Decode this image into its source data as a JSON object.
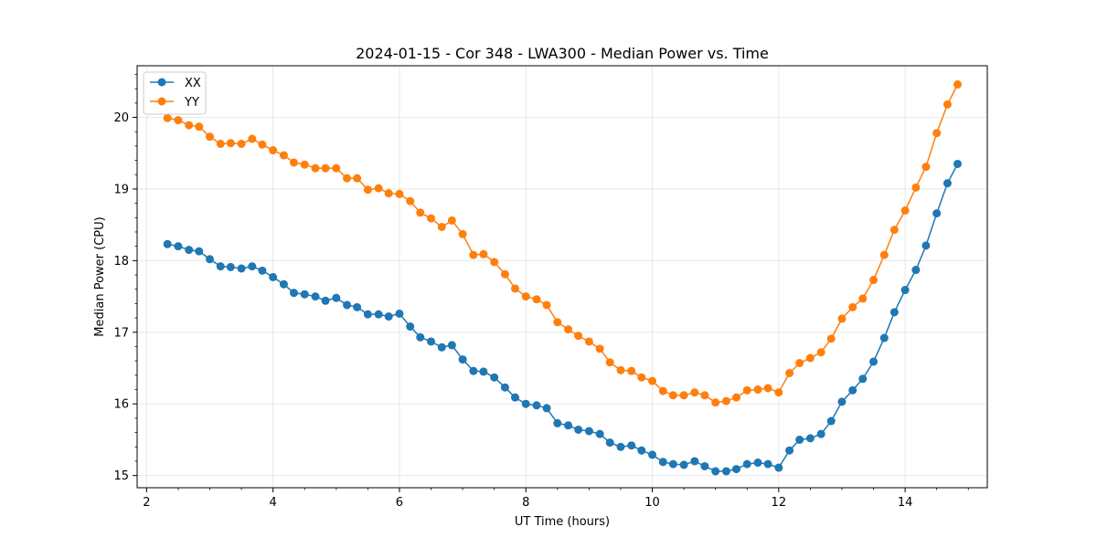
{
  "chart_data": {
    "type": "line",
    "title": "2024-01-15 - Cor 348 - LWA300 - Median Power vs. Time",
    "xlabel": "UT Time (hours)",
    "ylabel": "Median Power (CPU)",
    "xlim": [
      1.85,
      15.3
    ],
    "ylim": [
      14.83,
      20.72
    ],
    "xticks": [
      2,
      4,
      6,
      8,
      10,
      12,
      14
    ],
    "yticks": [
      15,
      16,
      17,
      18,
      19,
      20
    ],
    "grid": true,
    "legend_position": "top-left",
    "series": [
      {
        "name": "XX",
        "color": "#1f77b4",
        "x": [
          2.33,
          2.5,
          2.67,
          2.83,
          3.0,
          3.17,
          3.33,
          3.5,
          3.67,
          3.83,
          4.0,
          4.17,
          4.33,
          4.5,
          4.67,
          4.83,
          5.0,
          5.17,
          5.33,
          5.5,
          5.67,
          5.83,
          6.0,
          6.17,
          6.33,
          6.5,
          6.67,
          6.83,
          7.0,
          7.17,
          7.33,
          7.5,
          7.67,
          7.83,
          8.0,
          8.17,
          8.33,
          8.5,
          8.67,
          8.83,
          9.0,
          9.17,
          9.33,
          9.5,
          9.67,
          9.83,
          10.0,
          10.17,
          10.33,
          10.5,
          10.67,
          10.83,
          11.0,
          11.17,
          11.33,
          11.5,
          11.67,
          11.83,
          12.0,
          12.17,
          12.33,
          12.5,
          12.67,
          12.83,
          13.0,
          13.17,
          13.33,
          13.5,
          13.67,
          13.83,
          14.0,
          14.17,
          14.33,
          14.5,
          14.67,
          14.83
        ],
        "values": [
          18.23,
          18.2,
          18.15,
          18.13,
          18.02,
          17.92,
          17.91,
          17.89,
          17.92,
          17.86,
          17.77,
          17.67,
          17.55,
          17.53,
          17.5,
          17.44,
          17.48,
          17.38,
          17.35,
          17.25,
          17.25,
          17.22,
          17.26,
          17.08,
          16.93,
          16.87,
          16.79,
          16.82,
          16.62,
          16.46,
          16.45,
          16.37,
          16.23,
          16.09,
          16.0,
          15.98,
          15.94,
          15.73,
          15.7,
          15.64,
          15.62,
          15.58,
          15.46,
          15.4,
          15.42,
          15.35,
          15.29,
          15.19,
          15.16,
          15.15,
          15.2,
          15.13,
          15.06,
          15.06,
          15.09,
          15.16,
          15.18,
          15.16,
          15.11,
          15.35,
          15.5,
          15.52,
          15.58,
          15.76,
          16.03,
          16.19,
          16.35,
          16.59,
          16.92,
          17.28,
          17.59,
          17.87,
          18.21,
          18.66,
          19.08,
          19.35
        ]
      },
      {
        "name": "YY",
        "color": "#ff7f0e",
        "x": [
          2.33,
          2.5,
          2.67,
          2.83,
          3.0,
          3.17,
          3.33,
          3.5,
          3.67,
          3.83,
          4.0,
          4.17,
          4.33,
          4.5,
          4.67,
          4.83,
          5.0,
          5.17,
          5.33,
          5.5,
          5.67,
          5.83,
          6.0,
          6.17,
          6.33,
          6.5,
          6.67,
          6.83,
          7.0,
          7.17,
          7.33,
          7.5,
          7.67,
          7.83,
          8.0,
          8.17,
          8.33,
          8.5,
          8.67,
          8.83,
          9.0,
          9.17,
          9.33,
          9.5,
          9.67,
          9.83,
          10.0,
          10.17,
          10.33,
          10.5,
          10.67,
          10.83,
          11.0,
          11.17,
          11.33,
          11.5,
          11.67,
          11.83,
          12.0,
          12.17,
          12.33,
          12.5,
          12.67,
          12.83,
          13.0,
          13.17,
          13.33,
          13.5,
          13.67,
          13.83,
          14.0,
          14.17,
          14.33,
          14.5,
          14.67,
          14.83
        ],
        "values": [
          19.99,
          19.96,
          19.89,
          19.87,
          19.73,
          19.63,
          19.64,
          19.63,
          19.7,
          19.62,
          19.54,
          19.47,
          19.37,
          19.34,
          19.29,
          19.29,
          19.29,
          19.15,
          19.15,
          18.99,
          19.01,
          18.94,
          18.93,
          18.83,
          18.67,
          18.59,
          18.47,
          18.56,
          18.37,
          18.08,
          18.09,
          17.98,
          17.81,
          17.61,
          17.5,
          17.46,
          17.38,
          17.14,
          17.04,
          16.95,
          16.87,
          16.77,
          16.58,
          16.47,
          16.46,
          16.37,
          16.32,
          16.18,
          16.12,
          16.12,
          16.16,
          16.12,
          16.02,
          16.04,
          16.09,
          16.19,
          16.2,
          16.22,
          16.16,
          16.43,
          16.57,
          16.64,
          16.72,
          16.91,
          17.19,
          17.35,
          17.47,
          17.73,
          18.08,
          18.43,
          18.7,
          19.02,
          19.31,
          19.78,
          20.18,
          20.46
        ]
      }
    ]
  }
}
